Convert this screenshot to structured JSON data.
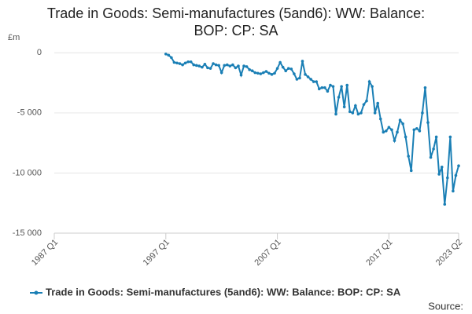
{
  "chart_data": {
    "type": "line",
    "title": "Trade in Goods: Semi-manufactures (5and6): WW: Balance: BOP: CP: SA",
    "y_label": "£m",
    "source_label": "Source:",
    "categories": [
      "1987 Q1",
      null,
      null,
      null,
      null,
      null,
      null,
      null,
      null,
      null,
      null,
      null,
      null,
      null,
      null,
      null,
      null,
      null,
      null,
      null,
      null,
      null,
      null,
      null,
      null,
      null,
      null,
      null,
      null,
      null,
      null,
      null,
      null,
      null,
      null,
      null,
      null,
      null,
      null,
      null,
      "1997 Q1",
      null,
      null,
      null,
      null,
      null,
      null,
      null,
      null,
      null,
      null,
      null,
      null,
      null,
      null,
      null,
      null,
      null,
      null,
      null,
      null,
      null,
      null,
      null,
      null,
      null,
      null,
      null,
      null,
      null,
      null,
      null,
      null,
      null,
      null,
      null,
      null,
      null,
      null,
      null,
      "2007 Q1",
      null,
      null,
      null,
      null,
      null,
      null,
      null,
      null,
      null,
      null,
      null,
      null,
      null,
      null,
      null,
      null,
      null,
      null,
      null,
      null,
      null,
      null,
      null,
      null,
      null,
      null,
      null,
      null,
      null,
      null,
      null,
      null,
      null,
      null,
      null,
      null,
      null,
      null,
      null,
      "2017 Q1",
      null,
      null,
      null,
      null,
      null,
      null,
      null,
      null,
      null,
      null,
      null,
      null,
      null,
      null,
      null,
      null,
      null,
      null,
      null,
      null,
      null,
      null,
      null,
      null,
      "2023 Q2"
    ],
    "series": [
      {
        "name": "Trade in Goods: Semi-manufactures (5and6): WW: Balance: BOP: CP: SA",
        "color": "#1a7fb5",
        "values": [
          null,
          null,
          null,
          null,
          null,
          null,
          null,
          null,
          null,
          null,
          null,
          null,
          null,
          null,
          null,
          null,
          null,
          null,
          null,
          null,
          null,
          null,
          null,
          null,
          null,
          null,
          null,
          null,
          null,
          null,
          null,
          null,
          null,
          null,
          null,
          null,
          null,
          null,
          null,
          null,
          -100,
          -200,
          -400,
          -800,
          -850,
          -900,
          -1000,
          -850,
          -750,
          -750,
          -1000,
          -1050,
          -1100,
          -1200,
          -950,
          -1250,
          -1300,
          -900,
          -1000,
          -1050,
          -1650,
          -1050,
          -1000,
          -1100,
          -1000,
          -1250,
          -1100,
          -1850,
          -1100,
          -1150,
          -1400,
          -1500,
          -1650,
          -1700,
          -1750,
          -1650,
          -1550,
          -1700,
          -1800,
          -1700,
          -1300,
          -800,
          -1200,
          -1500,
          -1300,
          -1350,
          -1750,
          -2200,
          -2100,
          -700,
          -1800,
          -2000,
          -2200,
          -2400,
          -2400,
          -3000,
          -2900,
          -2900,
          -3200,
          -2700,
          -2800,
          -5100,
          -3700,
          -2800,
          -4500,
          -2700,
          -4900,
          -5000,
          -4400,
          -5100,
          -5000,
          -4300,
          -4000,
          -2400,
          -2800,
          -5000,
          -4200,
          -5500,
          -6600,
          -6500,
          -6200,
          -6400,
          -7300,
          -6600,
          -5600,
          -5900,
          -7000,
          -8600,
          -9800,
          -6400,
          -6300,
          -6500,
          -5000,
          -2900,
          -5800,
          -8700,
          -8000,
          -7000,
          -10100,
          -9500,
          -12600,
          -10400,
          -7000,
          -11500,
          -10200,
          -9400
        ]
      }
    ],
    "ylim": [
      -15000,
      800
    ],
    "yticks": [
      {
        "value": -15000,
        "label": "-15 000"
      },
      {
        "value": -10000,
        "label": "-10 000"
      },
      {
        "value": -5000,
        "label": "-5 000"
      },
      0
    ],
    "grid": true
  }
}
